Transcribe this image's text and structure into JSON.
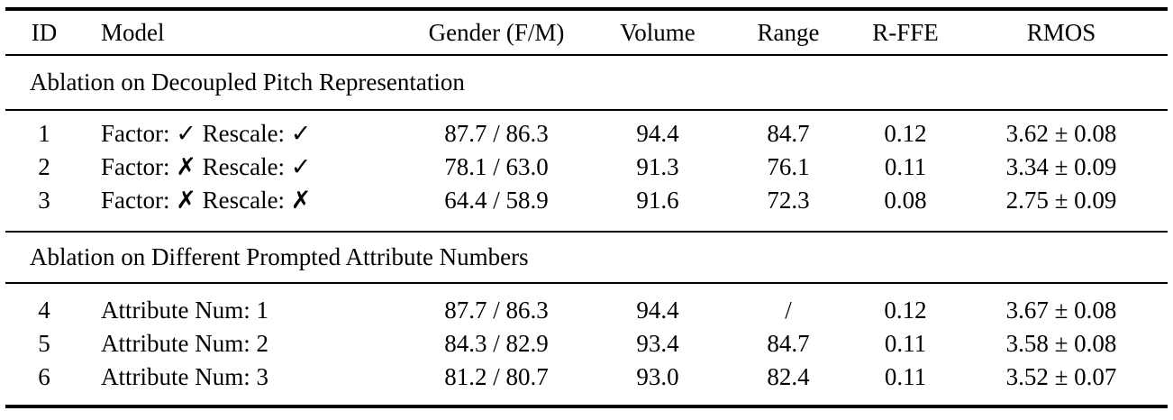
{
  "colors": {
    "text": "#000000",
    "rule": "#000000",
    "background": "#ffffff"
  },
  "table": {
    "columns": [
      {
        "label": "ID"
      },
      {
        "label": "Model"
      },
      {
        "label": "Gender (F/M)"
      },
      {
        "label": "Volume"
      },
      {
        "label": "Range"
      },
      {
        "label": "R-FFE"
      },
      {
        "label": "RMOS"
      }
    ],
    "sections": [
      {
        "header": "Ablation on Decoupled Pitch Representation",
        "rows": [
          {
            "id": "1",
            "model": "Factor: ✓ Rescale: ✓",
            "gender": "87.7 / 86.3",
            "volume": "94.4",
            "range": "84.7",
            "rffe": "0.12",
            "rmos": "3.62 ± 0.08"
          },
          {
            "id": "2",
            "model": "Factor: ✗ Rescale: ✓",
            "gender": "78.1 / 63.0",
            "volume": "91.3",
            "range": "76.1",
            "rffe": "0.11",
            "rmos": "3.34 ± 0.09"
          },
          {
            "id": "3",
            "model": "Factor: ✗ Rescale: ✗",
            "gender": "64.4 / 58.9",
            "volume": "91.6",
            "range": "72.3",
            "rffe": "0.08",
            "rmos": "2.75 ± 0.09"
          }
        ]
      },
      {
        "header": "Ablation on Different Prompted Attribute Numbers",
        "rows": [
          {
            "id": "4",
            "model": "Attribute Num: 1",
            "gender": "87.7 / 86.3",
            "volume": "94.4",
            "range": "/",
            "rffe": "0.12",
            "rmos": "3.67 ± 0.08"
          },
          {
            "id": "5",
            "model": "Attribute Num: 2",
            "gender": "84.3 / 82.9",
            "volume": "93.4",
            "range": "84.7",
            "rffe": "0.11",
            "rmos": "3.58 ± 0.08"
          },
          {
            "id": "6",
            "model": "Attribute Num: 3",
            "gender": "81.2 / 80.7",
            "volume": "93.0",
            "range": "82.4",
            "rffe": "0.11",
            "rmos": "3.52 ± 0.07"
          }
        ]
      }
    ]
  }
}
